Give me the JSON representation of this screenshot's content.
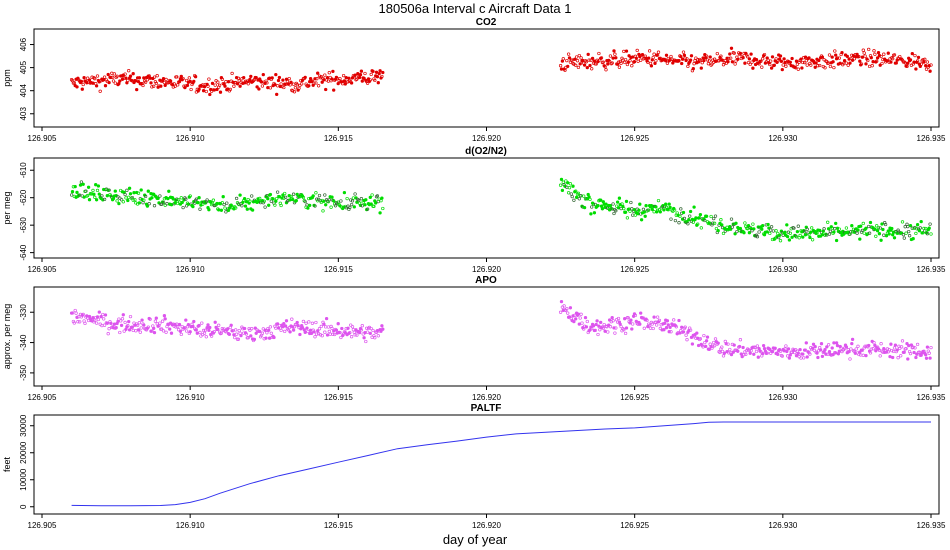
{
  "figure": {
    "title": "180506a   Interval c Aircraft Data 1",
    "xlabel": "day of year"
  },
  "chart_data": [
    {
      "type": "scatter",
      "title": "CO2",
      "ylabel": "ppm",
      "color": "#e00000",
      "xlim": [
        126.905,
        126.935
      ],
      "ylim": [
        402.6,
        406.5
      ],
      "yticks": [
        403,
        404,
        405,
        406
      ],
      "xticks": [
        126.905,
        126.91,
        126.915,
        126.92,
        126.925,
        126.93,
        126.935
      ],
      "xtick_labels": [
        "126.905",
        "126.910",
        "126.915",
        "126.920",
        "126.925",
        "126.930",
        "126.935"
      ],
      "segments": [
        {
          "x": [
            126.906,
            126.9075,
            126.909,
            126.9105,
            126.912,
            126.9135,
            126.915,
            126.9165
          ],
          "y": [
            404.3,
            404.5,
            404.4,
            404.2,
            404.4,
            404.3,
            404.5,
            404.6
          ]
        },
        {
          "x": [
            126.9225,
            126.924,
            126.9255,
            126.927,
            126.9285,
            126.93,
            126.9315,
            126.933,
            126.935
          ],
          "y": [
            405.2,
            405.3,
            405.4,
            405.2,
            405.4,
            405.2,
            405.3,
            405.4,
            405.2
          ]
        }
      ]
    },
    {
      "type": "scatter",
      "title": "d(O2/N2)",
      "ylabel": "per meg",
      "color": "#00dd00",
      "xlim": [
        126.905,
        126.935
      ],
      "ylim": [
        -640.5,
        -607
      ],
      "yticks": [
        -640,
        -630,
        -620,
        -610
      ],
      "xticks": [
        126.905,
        126.91,
        126.915,
        126.92,
        126.925,
        126.93,
        126.935
      ],
      "xtick_labels": [
        "126.905",
        "126.910",
        "126.915",
        "126.920",
        "126.925",
        "126.930",
        "126.935"
      ],
      "segments": [
        {
          "x": [
            126.906,
            126.907,
            126.9085,
            126.91,
            126.9115,
            126.913,
            126.9145,
            126.9165
          ],
          "y": [
            -617,
            -619,
            -620,
            -622,
            -623,
            -620,
            -621,
            -622
          ]
        },
        {
          "x": [
            126.9225,
            126.9235,
            126.925,
            126.926,
            126.927,
            126.928,
            126.929,
            126.9305,
            126.932,
            126.933,
            126.935
          ],
          "y": [
            -615,
            -622,
            -625,
            -624,
            -627,
            -630,
            -632,
            -633,
            -633,
            -632,
            -632
          ]
        }
      ]
    },
    {
      "type": "scatter",
      "title": "APO",
      "ylabel": "approx. per meg",
      "color": "#dd55ee",
      "xlim": [
        126.905,
        126.935
      ],
      "ylim": [
        -353,
        -323
      ],
      "yticks": [
        -350,
        -340,
        -330
      ],
      "xticks": [
        126.905,
        126.91,
        126.915,
        126.92,
        126.925,
        126.93,
        126.935
      ],
      "xtick_labels": [
        "126.905",
        "126.910",
        "126.915",
        "126.920",
        "126.925",
        "126.930",
        "126.935"
      ],
      "segments": [
        {
          "x": [
            126.906,
            126.9075,
            126.909,
            126.9105,
            126.912,
            126.9135,
            126.915,
            126.9165
          ],
          "y": [
            -331,
            -334,
            -334,
            -336,
            -337,
            -335,
            -336,
            -337
          ]
        },
        {
          "x": [
            126.9225,
            126.9235,
            126.925,
            126.926,
            126.927,
            126.928,
            126.9295,
            126.931,
            126.9325,
            126.935
          ],
          "y": [
            -328,
            -335,
            -333,
            -334,
            -338,
            -342,
            -343,
            -343,
            -342,
            -343
          ]
        }
      ]
    },
    {
      "type": "line",
      "title": "PALTF",
      "ylabel": "feet",
      "color": "#3333ee",
      "xlim": [
        126.905,
        126.935
      ],
      "ylim": [
        -1200,
        32500
      ],
      "yticks": [
        0,
        10000,
        20000,
        30000
      ],
      "xticks": [
        126.905,
        126.91,
        126.915,
        126.92,
        126.925,
        126.93,
        126.935
      ],
      "xtick_labels": [
        "126.905",
        "126.910",
        "126.915",
        "126.920",
        "126.925",
        "126.930",
        "126.935"
      ],
      "x": [
        126.906,
        126.907,
        126.908,
        126.909,
        126.9095,
        126.91,
        126.9105,
        126.911,
        126.912,
        126.913,
        126.914,
        126.915,
        126.916,
        126.917,
        126.918,
        126.919,
        126.92,
        126.921,
        126.922,
        126.923,
        126.924,
        126.925,
        126.926,
        126.927,
        126.9275,
        126.928,
        126.929,
        126.93,
        126.931,
        126.932,
        126.933,
        126.934,
        126.935
      ],
      "y": [
        500,
        400,
        400,
        450,
        800,
        1600,
        3000,
        5000,
        8500,
        11500,
        14000,
        16500,
        19000,
        21500,
        23000,
        24300,
        25800,
        27000,
        27600,
        28200,
        28800,
        29200,
        30000,
        30800,
        31300,
        31400,
        31400,
        31400,
        31400,
        31400,
        31400,
        31400,
        31400
      ]
    }
  ]
}
